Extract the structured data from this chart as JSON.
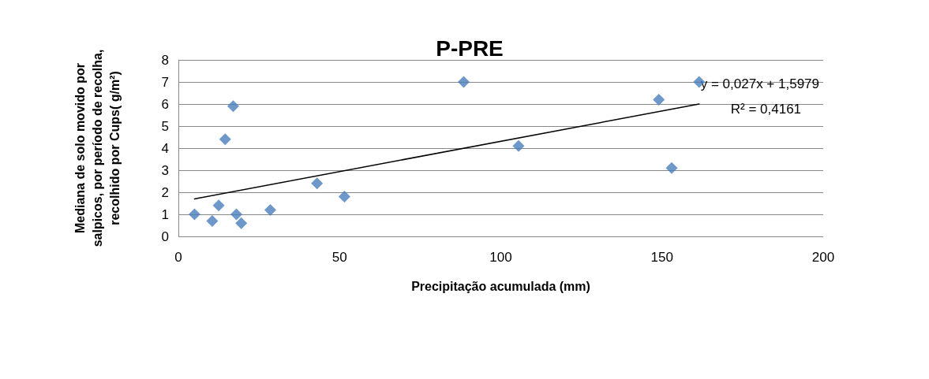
{
  "chart_data": {
    "type": "scatter",
    "title": "P-PRE",
    "xlabel": "Precipitação acumulada (mm)",
    "ylabel": "Mediana de solo movido por salpicos, por período de recolha, recolhido por Cups( g/m²)",
    "xlim": [
      0,
      200
    ],
    "xticks": [
      0,
      50,
      100,
      150,
      200
    ],
    "ylim": [
      0,
      8
    ],
    "yticks": [
      0,
      1,
      2,
      3,
      4,
      5,
      6,
      7,
      8
    ],
    "grid": "y",
    "marker": "diamond",
    "series": [
      {
        "color": "#4a7ebb",
        "x": [
          5,
          10.5,
          12.5,
          14.5,
          17,
          18,
          19.5,
          28.5,
          43,
          51.5,
          88.5,
          105.5,
          149,
          153,
          161.5
        ],
        "values": [
          1.0,
          0.7,
          1.4,
          4.4,
          5.9,
          1.0,
          0.6,
          1.2,
          2.4,
          1.8,
          7.0,
          4.1,
          6.2,
          3.1,
          7.0
        ]
      },
      {
        "type": "line",
        "color": "#000000",
        "marker": "none",
        "x": [
          5,
          161.5
        ],
        "values": [
          1.7,
          6.0
        ]
      }
    ],
    "annotations": [
      "y = 0,027x + 1,5979",
      "R² = 0,4161"
    ]
  }
}
